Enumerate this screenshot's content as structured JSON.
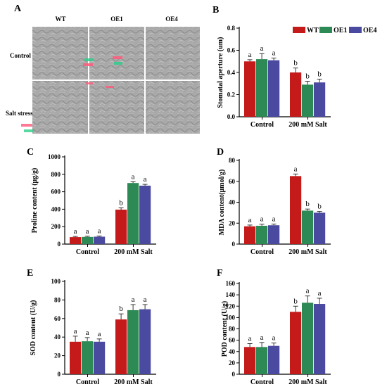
{
  "colors": {
    "WT": "#c41a1a",
    "OE1": "#2e8a55",
    "OE4": "#4a4aa0"
  },
  "micrograph": {
    "label": "A",
    "columns": [
      "WT",
      "OE1",
      "OE4"
    ],
    "rows": [
      "Control",
      "Salt stress"
    ]
  },
  "legend": [
    "WT",
    "OE1",
    "OE4"
  ],
  "chart_data": [
    {
      "id": "B",
      "type": "bar",
      "categories": [
        "Control",
        "200 mM Salt"
      ],
      "ylabel": "Stomatal aperture (um)",
      "ylim": [
        0,
        0.8
      ],
      "yticks": [
        0.0,
        0.2,
        0.4,
        0.6,
        0.8
      ],
      "tick_decimals": 1,
      "series": [
        {
          "name": "WT",
          "values": [
            0.5,
            0.4
          ],
          "errors": [
            0.015,
            0.04
          ],
          "letters": [
            "a",
            "b"
          ]
        },
        {
          "name": "OE1",
          "values": [
            0.52,
            0.29
          ],
          "errors": [
            0.05,
            0.03
          ],
          "letters": [
            "a",
            "b"
          ]
        },
        {
          "name": "OE4",
          "values": [
            0.51,
            0.31
          ],
          "errors": [
            0.02,
            0.03
          ],
          "letters": [
            "a",
            "b"
          ]
        }
      ]
    },
    {
      "id": "C",
      "type": "bar",
      "categories": [
        "Control",
        "200 mM Salt"
      ],
      "ylabel": "Proline content (μg/g)",
      "ylim": [
        0,
        1000
      ],
      "yticks": [
        0,
        200,
        400,
        600,
        800,
        1000
      ],
      "tick_decimals": 0,
      "series": [
        {
          "name": "WT",
          "values": [
            80,
            395
          ],
          "errors": [
            8,
            20
          ],
          "letters": [
            "a",
            "b"
          ]
        },
        {
          "name": "OE1",
          "values": [
            82,
            700
          ],
          "errors": [
            8,
            15
          ],
          "letters": [
            "a",
            "a"
          ]
        },
        {
          "name": "OE4",
          "values": [
            85,
            670
          ],
          "errors": [
            8,
            15
          ],
          "letters": [
            "a",
            "a"
          ]
        }
      ]
    },
    {
      "id": "D",
      "type": "bar",
      "categories": [
        "Control",
        "200 mM Salt"
      ],
      "ylabel": "MDA content(μmol/g)",
      "ylim": [
        0,
        80
      ],
      "yticks": [
        0,
        20,
        40,
        60,
        80
      ],
      "tick_decimals": 0,
      "series": [
        {
          "name": "WT",
          "values": [
            17,
            65
          ],
          "errors": [
            1.2,
            2
          ],
          "letters": [
            "a",
            "a"
          ]
        },
        {
          "name": "OE1",
          "values": [
            17.5,
            32
          ],
          "errors": [
            1.5,
            1.5
          ],
          "letters": [
            "a",
            "b"
          ]
        },
        {
          "name": "OE4",
          "values": [
            18,
            30
          ],
          "errors": [
            1.2,
            1.2
          ],
          "letters": [
            "a",
            "b"
          ]
        }
      ]
    },
    {
      "id": "E",
      "type": "bar",
      "categories": [
        "Control",
        "200 mM Salt"
      ],
      "ylabel": "SOD content (U/g)",
      "ylim": [
        0,
        100
      ],
      "yticks": [
        0,
        20,
        40,
        60,
        80,
        100
      ],
      "tick_decimals": 0,
      "series": [
        {
          "name": "WT",
          "values": [
            35,
            59
          ],
          "errors": [
            6,
            6
          ],
          "letters": [
            "a",
            "b"
          ]
        },
        {
          "name": "OE1",
          "values": [
            35.5,
            69
          ],
          "errors": [
            4,
            6
          ],
          "letters": [
            "a",
            "a"
          ]
        },
        {
          "name": "OE4",
          "values": [
            35,
            70
          ],
          "errors": [
            3,
            5
          ],
          "letters": [
            "a",
            "a"
          ]
        }
      ]
    },
    {
      "id": "F",
      "type": "bar",
      "categories": [
        "Control",
        "200 mM Salt"
      ],
      "ylabel": "POD content (U/g)",
      "ylim": [
        0,
        160
      ],
      "yticks": [
        0,
        20,
        40,
        60,
        80,
        100,
        120,
        140,
        160
      ],
      "tick_decimals": 0,
      "series": [
        {
          "name": "WT",
          "values": [
            48,
            110
          ],
          "errors": [
            6,
            10
          ],
          "letters": [
            "a",
            "b"
          ]
        },
        {
          "name": "OE1",
          "values": [
            48,
            126
          ],
          "errors": [
            8,
            12
          ],
          "letters": [
            "a",
            "a"
          ]
        },
        {
          "name": "OE4",
          "values": [
            50,
            124
          ],
          "errors": [
            5,
            10
          ],
          "letters": [
            "a",
            "a"
          ]
        }
      ]
    }
  ]
}
